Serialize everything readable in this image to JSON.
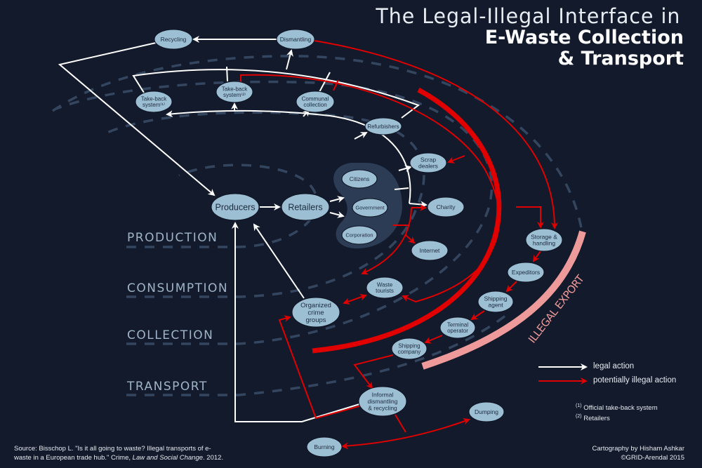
{
  "title": {
    "line1": "The Legal-Illegal Interface in",
    "line2": "E-Waste Collection",
    "line3": "& Transport"
  },
  "stages": [
    "PRODUCTION",
    "CONSUMPTION",
    "COLLECTION",
    "TRANSPORT"
  ],
  "nodes": {
    "recycling": [
      "Recycling"
    ],
    "dismantling": [
      "Dismantling"
    ],
    "takeback1": [
      "Take-back",
      "system⁽¹⁾"
    ],
    "takeback2": [
      "Take-back",
      "system⁽²⁾"
    ],
    "communal": [
      "Communal",
      "collection"
    ],
    "refurbishers": [
      "Refurbishers"
    ],
    "scrap": [
      "Scrap",
      "dealers"
    ],
    "citizens": [
      "Citizens"
    ],
    "government": [
      "Government"
    ],
    "corporation": [
      "Corporation"
    ],
    "charity": [
      "Charity"
    ],
    "internet": [
      "Internet"
    ],
    "producers": [
      "Producers"
    ],
    "retailers": [
      "Retailers"
    ],
    "tourists": [
      "Waste",
      "tourists"
    ],
    "crime": [
      "Organized",
      "crime",
      "groups"
    ],
    "storage": [
      "Storage &",
      "handling"
    ],
    "expeditors": [
      "Expeditors"
    ],
    "agent": [
      "Shipping",
      "agent"
    ],
    "terminal": [
      "Terminal",
      "operator"
    ],
    "company": [
      "Shipping",
      "company"
    ],
    "informal": [
      "Informal",
      "dismantling",
      "& recycling"
    ],
    "dumping": [
      "Dumping"
    ],
    "burning": [
      "Burning"
    ]
  },
  "band_label": "ILLEGAL EXPORT",
  "legend": {
    "legal": "legal action",
    "illegal": "potentially illegal action"
  },
  "footnotes": [
    {
      "mark": "(1)",
      "text": "Official take-back system"
    },
    {
      "mark": "(2)",
      "text": "Retailers"
    }
  ],
  "source": {
    "prefix": "Source: Bisschop L. \"Is it all going to waste? Illegal transports of e-waste in a European trade hub.\" Crime, ",
    "journal": "Law and Social Change",
    "suffix": ". 2012."
  },
  "credit": {
    "line1": "Cartography by Hisham Ashkar",
    "line2": "©GRID-Arendal 2015"
  },
  "colors": {
    "background": "#131a2b",
    "node": "#9dbfd3",
    "legal": "#ffffff",
    "illegal": "#e00000",
    "export_band": "#ee9a9a",
    "stage_dash": "#34465f"
  }
}
